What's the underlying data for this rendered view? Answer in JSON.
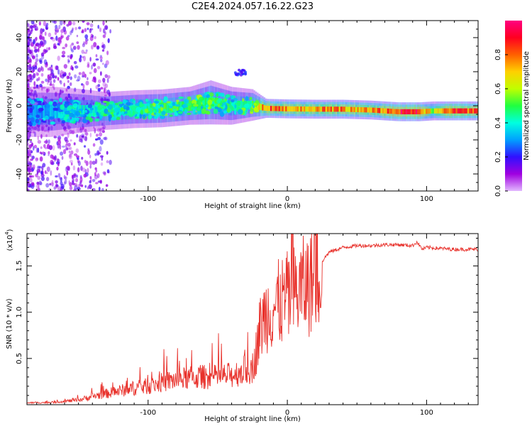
{
  "title": "C2E4.2024.057.16.22.G23",
  "chart_data": [
    {
      "type": "heatmap",
      "xlabel": "Height of straight line (km)",
      "ylabel": "Frequency (Hz)",
      "xlim": [
        -187,
        137
      ],
      "ylim": [
        -50,
        50
      ],
      "xticks": [
        -100,
        0,
        100
      ],
      "yticks": [
        -40,
        -20,
        0,
        20,
        40
      ],
      "colorbar": {
        "label": "Normalized spectral amplitude",
        "range": [
          0.0,
          1.0
        ],
        "ticks": [
          0.0,
          0.2,
          0.4,
          0.6,
          0.8
        ],
        "colors": [
          "#e2b8ff",
          "#a000e0",
          "#3010ff",
          "#00a0ff",
          "#00ffe0",
          "#20ff40",
          "#c0ff00",
          "#ffd000",
          "#ff6000",
          "#ff0020",
          "#ff0080"
        ]
      },
      "ridge": [
        {
          "x": -185,
          "f": -3.5,
          "amp": 0.3,
          "width": 8
        },
        {
          "x": -170,
          "f": -3.5,
          "amp": 0.35,
          "width": 8
        },
        {
          "x": -150,
          "f": -3.0,
          "amp": 0.4,
          "width": 7
        },
        {
          "x": -130,
          "f": -3.0,
          "amp": 0.45,
          "width": 6
        },
        {
          "x": -110,
          "f": -2.0,
          "amp": 0.45,
          "width": 6
        },
        {
          "x": -90,
          "f": -1.5,
          "amp": 0.5,
          "width": 6
        },
        {
          "x": -70,
          "f": 0.0,
          "amp": 0.5,
          "width": 6
        },
        {
          "x": -55,
          "f": 2.0,
          "amp": 0.5,
          "width": 7
        },
        {
          "x": -40,
          "f": 0.0,
          "amp": 0.45,
          "width": 6
        },
        {
          "x": -25,
          "f": 0.5,
          "amp": 0.5,
          "width": 5
        },
        {
          "x": -15,
          "f": -1.5,
          "amp": 0.85,
          "width": 3
        },
        {
          "x": 0,
          "f": -1.8,
          "amp": 0.8,
          "width": 3
        },
        {
          "x": 20,
          "f": -2.0,
          "amp": 0.8,
          "width": 3
        },
        {
          "x": 40,
          "f": -2.0,
          "amp": 0.8,
          "width": 3
        },
        {
          "x": 60,
          "f": -2.5,
          "amp": 0.75,
          "width": 3
        },
        {
          "x": 80,
          "f": -3.5,
          "amp": 0.95,
          "width": 3
        },
        {
          "x": 95,
          "f": -3.5,
          "amp": 0.9,
          "width": 3
        },
        {
          "x": 105,
          "f": -3.0,
          "amp": 0.6,
          "width": 3
        },
        {
          "x": 115,
          "f": -3.0,
          "amp": 0.9,
          "width": 3
        },
        {
          "x": 137,
          "f": -3.0,
          "amp": 0.85,
          "width": 3
        }
      ]
    },
    {
      "type": "line",
      "xlabel": "Height of straight line (km)",
      "ylabel": "SNR (10 * v/v)",
      "yscale_label": "(x10",
      "yscale_exponent": "4",
      "xlim": [
        -187,
        137
      ],
      "ylim": [
        0,
        18500
      ],
      "xticks": [
        -100,
        0,
        100
      ],
      "ytick_labels": [
        "0.5",
        "1.0",
        "1.5"
      ],
      "ytick_values": [
        5000,
        10000,
        15000
      ],
      "color": "#e8302a",
      "series": [
        {
          "x": [
            -187,
            -170,
            -150,
            -140,
            -130,
            -120,
            -110,
            -100,
            -90,
            -80,
            -70,
            -60,
            -50,
            -40,
            -35,
            -30,
            -25,
            -22,
            -20,
            -18,
            -15,
            -10,
            -5,
            0,
            5,
            10,
            15,
            20,
            25,
            30,
            40,
            50,
            60,
            70,
            80,
            90,
            93,
            97,
            100,
            110,
            120,
            130,
            137
          ],
          "y": [
            200,
            250,
            500,
            900,
            1200,
            1500,
            1800,
            2000,
            2400,
            2700,
            2900,
            3000,
            3000,
            3200,
            3500,
            3800,
            4000,
            6000,
            8000,
            9000,
            10000,
            10500,
            11000,
            11500,
            12000,
            12500,
            13000,
            14000,
            15500,
            16500,
            17000,
            17200,
            17200,
            17300,
            17300,
            17200,
            17600,
            16800,
            17000,
            16900,
            16800,
            16800,
            16800
          ]
        }
      ]
    }
  ]
}
